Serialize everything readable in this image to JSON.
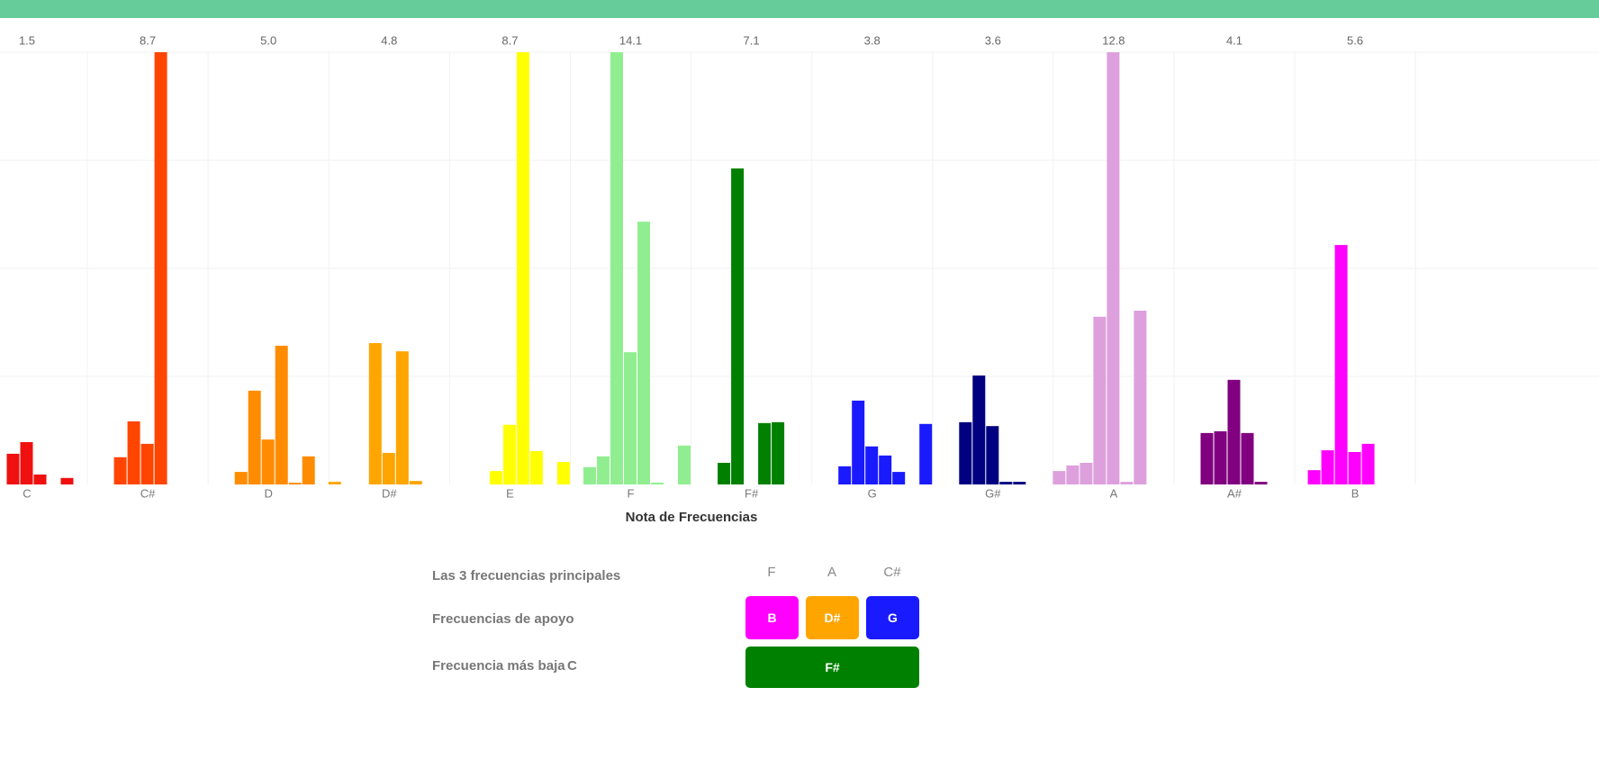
{
  "chart_data": {
    "type": "grouped-bar",
    "x_title": "Nota de Frecuencias",
    "ylim": [
      0,
      100
    ],
    "grid": true,
    "groups": [
      {
        "label": "C",
        "color": "#f01010",
        "total": 1.5,
        "total_label": "1.5",
        "values": [
          null,
          null,
          null,
          7.1,
          9.8,
          2.3,
          null,
          1.5,
          null
        ]
      },
      {
        "label": "C#",
        "color": "#ff4500",
        "total": 8.7,
        "total_label": "8.7",
        "values": [
          null,
          null,
          6.3,
          14.6,
          9.4,
          100,
          null,
          null,
          null
        ]
      },
      {
        "label": "D",
        "color": "#ff8c00",
        "total": 5.0,
        "total_label": "5.0",
        "values": [
          null,
          null,
          2.9,
          21.7,
          10.4,
          32.1,
          0.4,
          6.5,
          null
        ]
      },
      {
        "label": "D#",
        "color": "#ffa500",
        "total": 4.8,
        "total_label": "4.8",
        "values": [
          0.6,
          null,
          null,
          32.7,
          7.3,
          30.8,
          0.8,
          null,
          null
        ]
      },
      {
        "label": "E",
        "color": "#ffff00",
        "total": 8.7,
        "total_label": "8.7",
        "values": [
          null,
          null,
          null,
          3.1,
          13.8,
          100,
          7.7,
          null,
          5.2
        ]
      },
      {
        "label": "F",
        "color": "#90ee90",
        "total": 14.1,
        "total_label": "14.1",
        "values": [
          null,
          4.0,
          6.5,
          100,
          30.6,
          60.8,
          0.4,
          null,
          9.0
        ]
      },
      {
        "label": "F#",
        "color": "#008000",
        "total": 7.1,
        "total_label": "7.1",
        "values": [
          null,
          null,
          5.0,
          73.1,
          null,
          14.2,
          14.4,
          null,
          null
        ]
      },
      {
        "label": "G",
        "color": "#1a1aff",
        "total": 3.8,
        "total_label": "3.8",
        "values": [
          null,
          null,
          4.2,
          19.4,
          8.8,
          6.7,
          2.9,
          null,
          14.0
        ]
      },
      {
        "label": "G#",
        "color": "#000080",
        "total": 3.6,
        "total_label": "3.6",
        "values": [
          null,
          null,
          14.4,
          25.2,
          13.5,
          0.6,
          0.6,
          null,
          null
        ]
      },
      {
        "label": "A",
        "color": "#dda0dd",
        "total": 12.8,
        "total_label": "12.8",
        "values": [
          3.1,
          4.4,
          5.0,
          38.8,
          100,
          0.6,
          40.2,
          null,
          null
        ]
      },
      {
        "label": "A#",
        "color": "#800080",
        "total": 4.1,
        "total_label": "4.1",
        "values": [
          null,
          null,
          11.9,
          12.3,
          24.2,
          11.9,
          0.6,
          null,
          null
        ]
      },
      {
        "label": "B",
        "color": "#ff00ff",
        "total": 5.6,
        "total_label": "5.6",
        "values": [
          null,
          3.3,
          7.9,
          55.4,
          7.5,
          9.4,
          null,
          null,
          null
        ]
      }
    ]
  },
  "summary": {
    "main_label": "Las 3 frecuencias principales",
    "main": [
      "F",
      "A",
      "C#"
    ],
    "support_label": "Frecuencias de apoyo",
    "support": [
      {
        "label": "B",
        "color": "#ff00ff"
      },
      {
        "label": "D#",
        "color": "#ffa500"
      },
      {
        "label": "G",
        "color": "#1a1aff"
      }
    ],
    "lowest_label": "Frecuencia más baja",
    "lowest": "C",
    "highlight": {
      "label": "F#",
      "color": "#008000"
    }
  }
}
